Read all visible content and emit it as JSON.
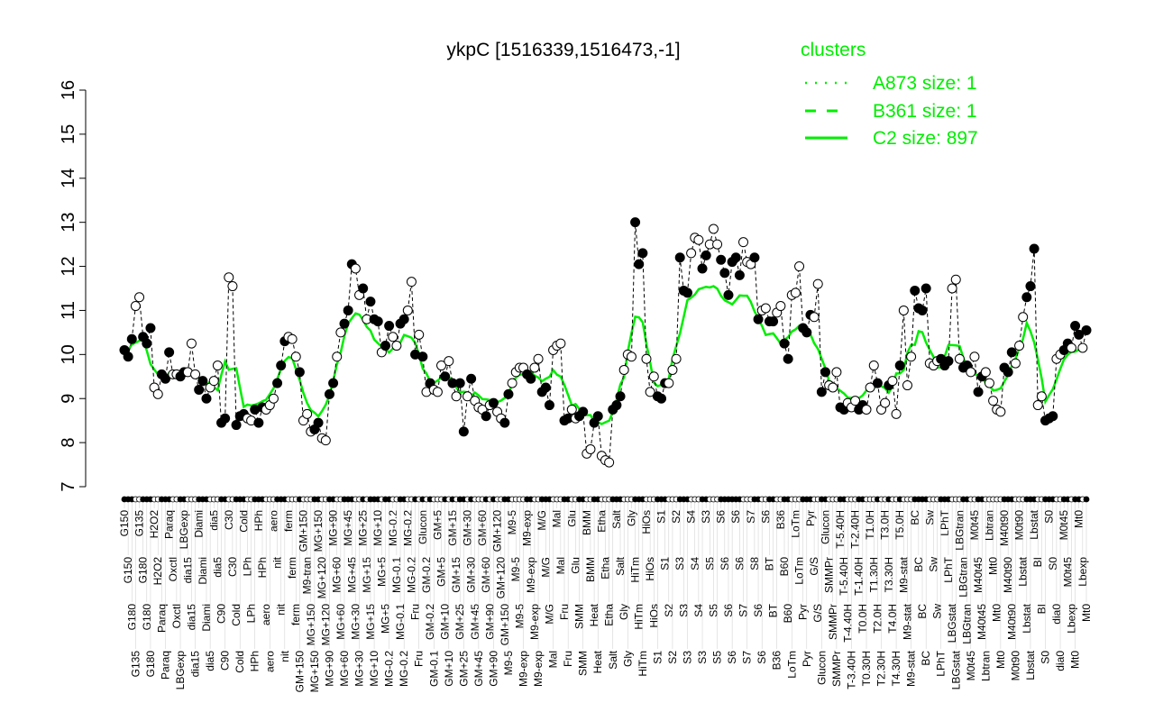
{
  "chart_data": {
    "type": "line",
    "title": "ykpC [1516339,1516473,-1]",
    "xlabel": "",
    "ylabel": "",
    "ylim": [
      7,
      16
    ],
    "yticks": [
      7,
      8,
      9,
      10,
      11,
      12,
      13,
      14,
      15,
      16
    ],
    "grid": false,
    "legend": {
      "title": "clusters",
      "placement": "top-right",
      "entries": [
        {
          "label": "A873 size: 1",
          "style": "dotted"
        },
        {
          "label": "B361 size: 1",
          "style": "dashed"
        },
        {
          "label": "C2 size: 897",
          "style": "solid"
        }
      ]
    },
    "colors": {
      "cluster": "#00ee00",
      "points": "#000000"
    },
    "points_format": [
      "condition",
      "expression",
      "filled"
    ],
    "points": [
      [
        "G150",
        10.1,
        1
      ],
      [
        "G150",
        9.95,
        1
      ],
      [
        "G180",
        10.35,
        1
      ],
      [
        "G135",
        11.1,
        0
      ],
      [
        "G135",
        11.3,
        0
      ],
      [
        "G180",
        10.4,
        1
      ],
      [
        "G180",
        10.25,
        1
      ],
      [
        "G180",
        10.6,
        1
      ],
      [
        "H2O2",
        9.25,
        0
      ],
      [
        "H2O2",
        9.1,
        0
      ],
      [
        "Paraq",
        9.55,
        1
      ],
      [
        "Paraq",
        9.45,
        1
      ],
      [
        "Paraq",
        10.05,
        1
      ],
      [
        "Oxctl",
        9.55,
        0
      ],
      [
        "Oxctl",
        9.55,
        0
      ],
      [
        "LBGexp",
        9.5,
        1
      ],
      [
        "LBGexp",
        9.6,
        1
      ],
      [
        "dia15",
        9.6,
        0
      ],
      [
        "dia15",
        10.25,
        0
      ],
      [
        "dia15",
        9.55,
        0
      ],
      [
        "Diami",
        9.2,
        1
      ],
      [
        "Diami",
        9.4,
        1
      ],
      [
        "Diami",
        9.0,
        1
      ],
      [
        "dia5",
        9.25,
        0
      ],
      [
        "dia5",
        9.4,
        0
      ],
      [
        "dia5",
        9.75,
        0
      ],
      [
        "C90",
        8.45,
        1
      ],
      [
        "C90",
        8.55,
        1
      ],
      [
        "C30",
        11.75,
        0
      ],
      [
        "C30",
        11.55,
        0
      ],
      [
        "Cold",
        8.4,
        1
      ],
      [
        "Cold",
        8.6,
        1
      ],
      [
        "Cold",
        8.65,
        1
      ],
      [
        "LPh",
        8.55,
        0
      ],
      [
        "LPh",
        8.5,
        0
      ],
      [
        "HPh",
        8.75,
        1
      ],
      [
        "HPh",
        8.45,
        1
      ],
      [
        "HPh",
        8.8,
        1
      ],
      [
        "aero",
        8.75,
        0
      ],
      [
        "aero",
        8.85,
        0
      ],
      [
        "aero",
        9.0,
        0
      ],
      [
        "nit",
        9.35,
        1
      ],
      [
        "nit",
        9.75,
        1
      ],
      [
        "nit",
        10.3,
        1
      ],
      [
        "ferm",
        10.4,
        0
      ],
      [
        "ferm",
        10.35,
        0
      ],
      [
        "ferm",
        9.95,
        0
      ],
      [
        "GM+150",
        9.6,
        1
      ],
      [
        "GM+150",
        8.5,
        0
      ],
      [
        "M9-tran",
        8.65,
        0
      ],
      [
        "MG+150",
        8.25,
        0
      ],
      [
        "MG+150",
        8.3,
        1
      ],
      [
        "MG+150",
        8.45,
        1
      ],
      [
        "MG+120",
        8.1,
        0
      ],
      [
        "MG+120",
        8.05,
        0
      ],
      [
        "MG+90",
        9.1,
        1
      ],
      [
        "MG+90",
        9.35,
        1
      ],
      [
        "MG+60",
        9.95,
        0
      ],
      [
        "MG+60",
        10.5,
        0
      ],
      [
        "MG+60",
        10.7,
        1
      ],
      [
        "MG+45",
        11.0,
        1
      ],
      [
        "MG+45",
        12.05,
        1
      ],
      [
        "MG+30",
        11.95,
        0
      ],
      [
        "MG+30",
        11.35,
        0
      ],
      [
        "MG+25",
        11.5,
        1
      ],
      [
        "MG+15",
        10.8,
        0
      ],
      [
        "MG+15",
        11.2,
        1
      ],
      [
        "MG+10",
        10.8,
        1
      ],
      [
        "MG+10",
        10.75,
        1
      ],
      [
        "MG+5",
        10.05,
        0
      ],
      [
        "MG+5",
        10.2,
        1
      ],
      [
        "MG-0.2",
        10.65,
        1
      ],
      [
        "MG-0.2",
        10.4,
        0
      ],
      [
        "MG-0.1",
        10.2,
        0
      ],
      [
        "MG-0.1",
        10.7,
        1
      ],
      [
        "MG-0.2",
        10.8,
        1
      ],
      [
        "MG-0.2",
        11.0,
        0
      ],
      [
        "MG-0.2",
        11.65,
        0
      ],
      [
        "Fru",
        10.0,
        1
      ],
      [
        "Fru",
        10.45,
        0
      ],
      [
        "Glucon",
        9.95,
        1
      ],
      [
        "GM-0.2",
        9.15,
        0
      ],
      [
        "GM-0.2",
        9.35,
        1
      ],
      [
        "GM-0.1",
        9.2,
        0
      ],
      [
        "GM+5",
        9.15,
        0
      ],
      [
        "GM+5",
        9.75,
        0
      ],
      [
        "GM+10",
        9.5,
        1
      ],
      [
        "GM+10",
        9.85,
        0
      ],
      [
        "GM+15",
        9.35,
        1
      ],
      [
        "GM+15",
        9.05,
        0
      ],
      [
        "GM+25",
        9.35,
        1
      ],
      [
        "GM+25",
        8.25,
        1
      ],
      [
        "GM+30",
        9.05,
        0
      ],
      [
        "GM+30",
        9.45,
        1
      ],
      [
        "GM+45",
        8.95,
        0
      ],
      [
        "GM+45",
        8.8,
        0
      ],
      [
        "GM+60",
        8.75,
        0
      ],
      [
        "GM+60",
        8.6,
        1
      ],
      [
        "GM+90",
        8.85,
        0
      ],
      [
        "GM+90",
        8.9,
        1
      ],
      [
        "GM+120",
        8.7,
        0
      ],
      [
        "GM+120",
        8.55,
        0
      ],
      [
        "GM+150",
        8.45,
        1
      ],
      [
        "M9-5",
        9.1,
        1
      ],
      [
        "M9-5",
        9.35,
        0
      ],
      [
        "M9-5",
        9.6,
        0
      ],
      [
        "M9-5",
        9.7,
        0
      ],
      [
        "M9-exp",
        9.7,
        0
      ],
      [
        "M9-exp",
        9.55,
        1
      ],
      [
        "M9-exp",
        9.45,
        1
      ],
      [
        "M9-exp",
        9.7,
        0
      ],
      [
        "M9-exp",
        9.9,
        0
      ],
      [
        "M/G",
        9.15,
        1
      ],
      [
        "M/G",
        9.25,
        1
      ],
      [
        "M/G",
        8.85,
        1
      ],
      [
        "Mal",
        10.1,
        0
      ],
      [
        "Mal",
        10.2,
        0
      ],
      [
        "Mal",
        10.25,
        0
      ],
      [
        "Fru",
        8.5,
        1
      ],
      [
        "Fru",
        8.55,
        1
      ],
      [
        "Glu",
        8.75,
        0
      ],
      [
        "Glu",
        8.55,
        0
      ],
      [
        "SMM",
        8.6,
        1
      ],
      [
        "SMM",
        8.7,
        1
      ],
      [
        "BMM",
        7.75,
        0
      ],
      [
        "BMM",
        7.85,
        0
      ],
      [
        "Heat",
        8.45,
        1
      ],
      [
        "Heat",
        8.6,
        1
      ],
      [
        "Etha",
        7.7,
        0
      ],
      [
        "Etha",
        7.6,
        0
      ],
      [
        "Etha",
        7.55,
        0
      ],
      [
        "Salt",
        8.75,
        1
      ],
      [
        "Salt",
        8.85,
        1
      ],
      [
        "Salt",
        9.05,
        1
      ],
      [
        "Gly",
        9.65,
        0
      ],
      [
        "Gly",
        10.0,
        0
      ],
      [
        "Gly",
        9.95,
        0
      ],
      [
        "HiTm",
        13.0,
        1
      ],
      [
        "HiTm",
        12.05,
        1
      ],
      [
        "HiTm",
        12.3,
        1
      ],
      [
        "HiOs",
        9.9,
        0
      ],
      [
        "HiOs",
        9.15,
        0
      ],
      [
        "HiOs",
        9.5,
        0
      ],
      [
        "S1",
        9.05,
        1
      ],
      [
        "S1",
        9.0,
        1
      ],
      [
        "S1",
        9.35,
        1
      ],
      [
        "S2",
        9.35,
        0
      ],
      [
        "S2",
        9.65,
        0
      ],
      [
        "S2",
        9.9,
        0
      ],
      [
        "S3",
        12.2,
        1
      ],
      [
        "S3",
        11.45,
        1
      ],
      [
        "S3",
        11.4,
        1
      ],
      [
        "S4",
        12.3,
        0
      ],
      [
        "S4",
        12.65,
        0
      ],
      [
        "S4",
        12.6,
        0
      ],
      [
        "S3",
        11.95,
        1
      ],
      [
        "S3",
        12.25,
        1
      ],
      [
        "S5",
        12.5,
        0
      ],
      [
        "S5",
        12.85,
        0
      ],
      [
        "S5",
        12.5,
        0
      ],
      [
        "S6",
        12.15,
        1
      ],
      [
        "S6",
        11.85,
        1
      ],
      [
        "S6",
        11.35,
        1
      ],
      [
        "S6",
        12.1,
        1
      ],
      [
        "S6",
        12.2,
        1
      ],
      [
        "S6",
        11.8,
        1
      ],
      [
        "S7",
        12.55,
        0
      ],
      [
        "S7",
        12.1,
        0
      ],
      [
        "S7",
        12.05,
        0
      ],
      [
        "S8",
        12.2,
        1
      ],
      [
        "S6",
        10.8,
        1
      ],
      [
        "S6",
        11.0,
        0
      ],
      [
        "S6",
        11.05,
        0
      ],
      [
        "BT",
        10.75,
        1
      ],
      [
        "BT",
        10.75,
        1
      ],
      [
        "B36",
        10.95,
        0
      ],
      [
        "B36",
        11.1,
        0
      ],
      [
        "B60",
        10.25,
        1
      ],
      [
        "B60",
        9.9,
        1
      ],
      [
        "LoTm",
        11.35,
        0
      ],
      [
        "LoTm",
        11.4,
        0
      ],
      [
        "LoTm",
        12.0,
        0
      ],
      [
        "Pyr",
        10.6,
        1
      ],
      [
        "Pyr",
        10.5,
        1
      ],
      [
        "Pyr",
        10.9,
        1
      ],
      [
        "G/S",
        10.85,
        0
      ],
      [
        "G/S",
        11.6,
        0
      ],
      [
        "Glucon",
        9.15,
        1
      ],
      [
        "Glucon",
        9.6,
        1
      ],
      [
        "SMMPr",
        9.3,
        0
      ],
      [
        "SMMPr",
        9.25,
        0
      ],
      [
        "SMMPr",
        9.6,
        0
      ],
      [
        "T-5.40H",
        8.8,
        1
      ],
      [
        "T-5.40H",
        8.75,
        1
      ],
      [
        "T-4.40H",
        8.9,
        0
      ],
      [
        "T-3.40H",
        8.8,
        0
      ],
      [
        "T-2.40H",
        8.95,
        0
      ],
      [
        "T-1.40H",
        8.75,
        1
      ],
      [
        "T0.0H",
        8.85,
        1
      ],
      [
        "T0.30H",
        8.75,
        0
      ],
      [
        "T1.0H",
        9.25,
        0
      ],
      [
        "T1.30H",
        9.75,
        0
      ],
      [
        "T2.0H",
        9.35,
        1
      ],
      [
        "T2.30H",
        8.75,
        0
      ],
      [
        "T3.0H",
        8.9,
        0
      ],
      [
        "T3.30H",
        9.3,
        1
      ],
      [
        "T4.0H",
        9.4,
        0
      ],
      [
        "T4.30H",
        8.65,
        0
      ],
      [
        "T5.0H",
        9.75,
        1
      ],
      [
        "M9-stat",
        11.0,
        0
      ],
      [
        "M9-stat",
        9.3,
        0
      ],
      [
        "M9-stat",
        9.95,
        0
      ],
      [
        "BC",
        11.45,
        1
      ],
      [
        "BC",
        11.05,
        1
      ],
      [
        "BC",
        11.0,
        1
      ],
      [
        "BC",
        11.5,
        1
      ],
      [
        "Sw",
        9.8,
        0
      ],
      [
        "Sw",
        9.75,
        0
      ],
      [
        "Sw",
        9.85,
        0
      ],
      [
        "LPhT",
        9.9,
        1
      ],
      [
        "LPhT",
        9.75,
        1
      ],
      [
        "LPhT",
        9.85,
        1
      ],
      [
        "LBGstat",
        11.5,
        0
      ],
      [
        "LBGstat",
        11.7,
        0
      ],
      [
        "LBGtran",
        9.9,
        0
      ],
      [
        "LBGtran",
        9.7,
        1
      ],
      [
        "LBGtran",
        9.75,
        1
      ],
      [
        "M0t45",
        9.6,
        0
      ],
      [
        "M0t45",
        9.95,
        0
      ],
      [
        "M40t45",
        9.15,
        1
      ],
      [
        "M40t45",
        9.5,
        1
      ],
      [
        "Lbtran",
        9.6,
        0
      ],
      [
        "Lbtran",
        9.35,
        0
      ],
      [
        "Mt0",
        8.95,
        0
      ],
      [
        "Mt0",
        8.75,
        0
      ],
      [
        "Mt0",
        8.7,
        0
      ],
      [
        "M40t90",
        9.7,
        1
      ],
      [
        "M40t90",
        9.6,
        1
      ],
      [
        "M40t90",
        10.05,
        1
      ],
      [
        "M0t90",
        9.8,
        0
      ],
      [
        "M0t90",
        10.2,
        0
      ],
      [
        "Lbstat",
        10.85,
        0
      ],
      [
        "Lbstat",
        11.3,
        1
      ],
      [
        "Lbstat",
        11.55,
        1
      ],
      [
        "Lbstat",
        12.4,
        1
      ],
      [
        "BI",
        8.85,
        0
      ],
      [
        "BI",
        9.05,
        0
      ],
      [
        "S0",
        8.5,
        1
      ],
      [
        "S0",
        8.55,
        1
      ],
      [
        "S0",
        8.6,
        1
      ],
      [
        "dia0",
        9.9,
        0
      ],
      [
        "dia0",
        10.0,
        0
      ],
      [
        "M0t45",
        10.1,
        1
      ],
      [
        "M0t45",
        10.25,
        1
      ],
      [
        "Lbexp",
        10.15,
        0
      ],
      [
        "Mt0",
        10.65,
        1
      ],
      [
        "Mt0",
        10.45,
        1
      ],
      [
        "Lbexp",
        10.15,
        0
      ],
      [
        "Mt0",
        10.55,
        1
      ]
    ]
  }
}
